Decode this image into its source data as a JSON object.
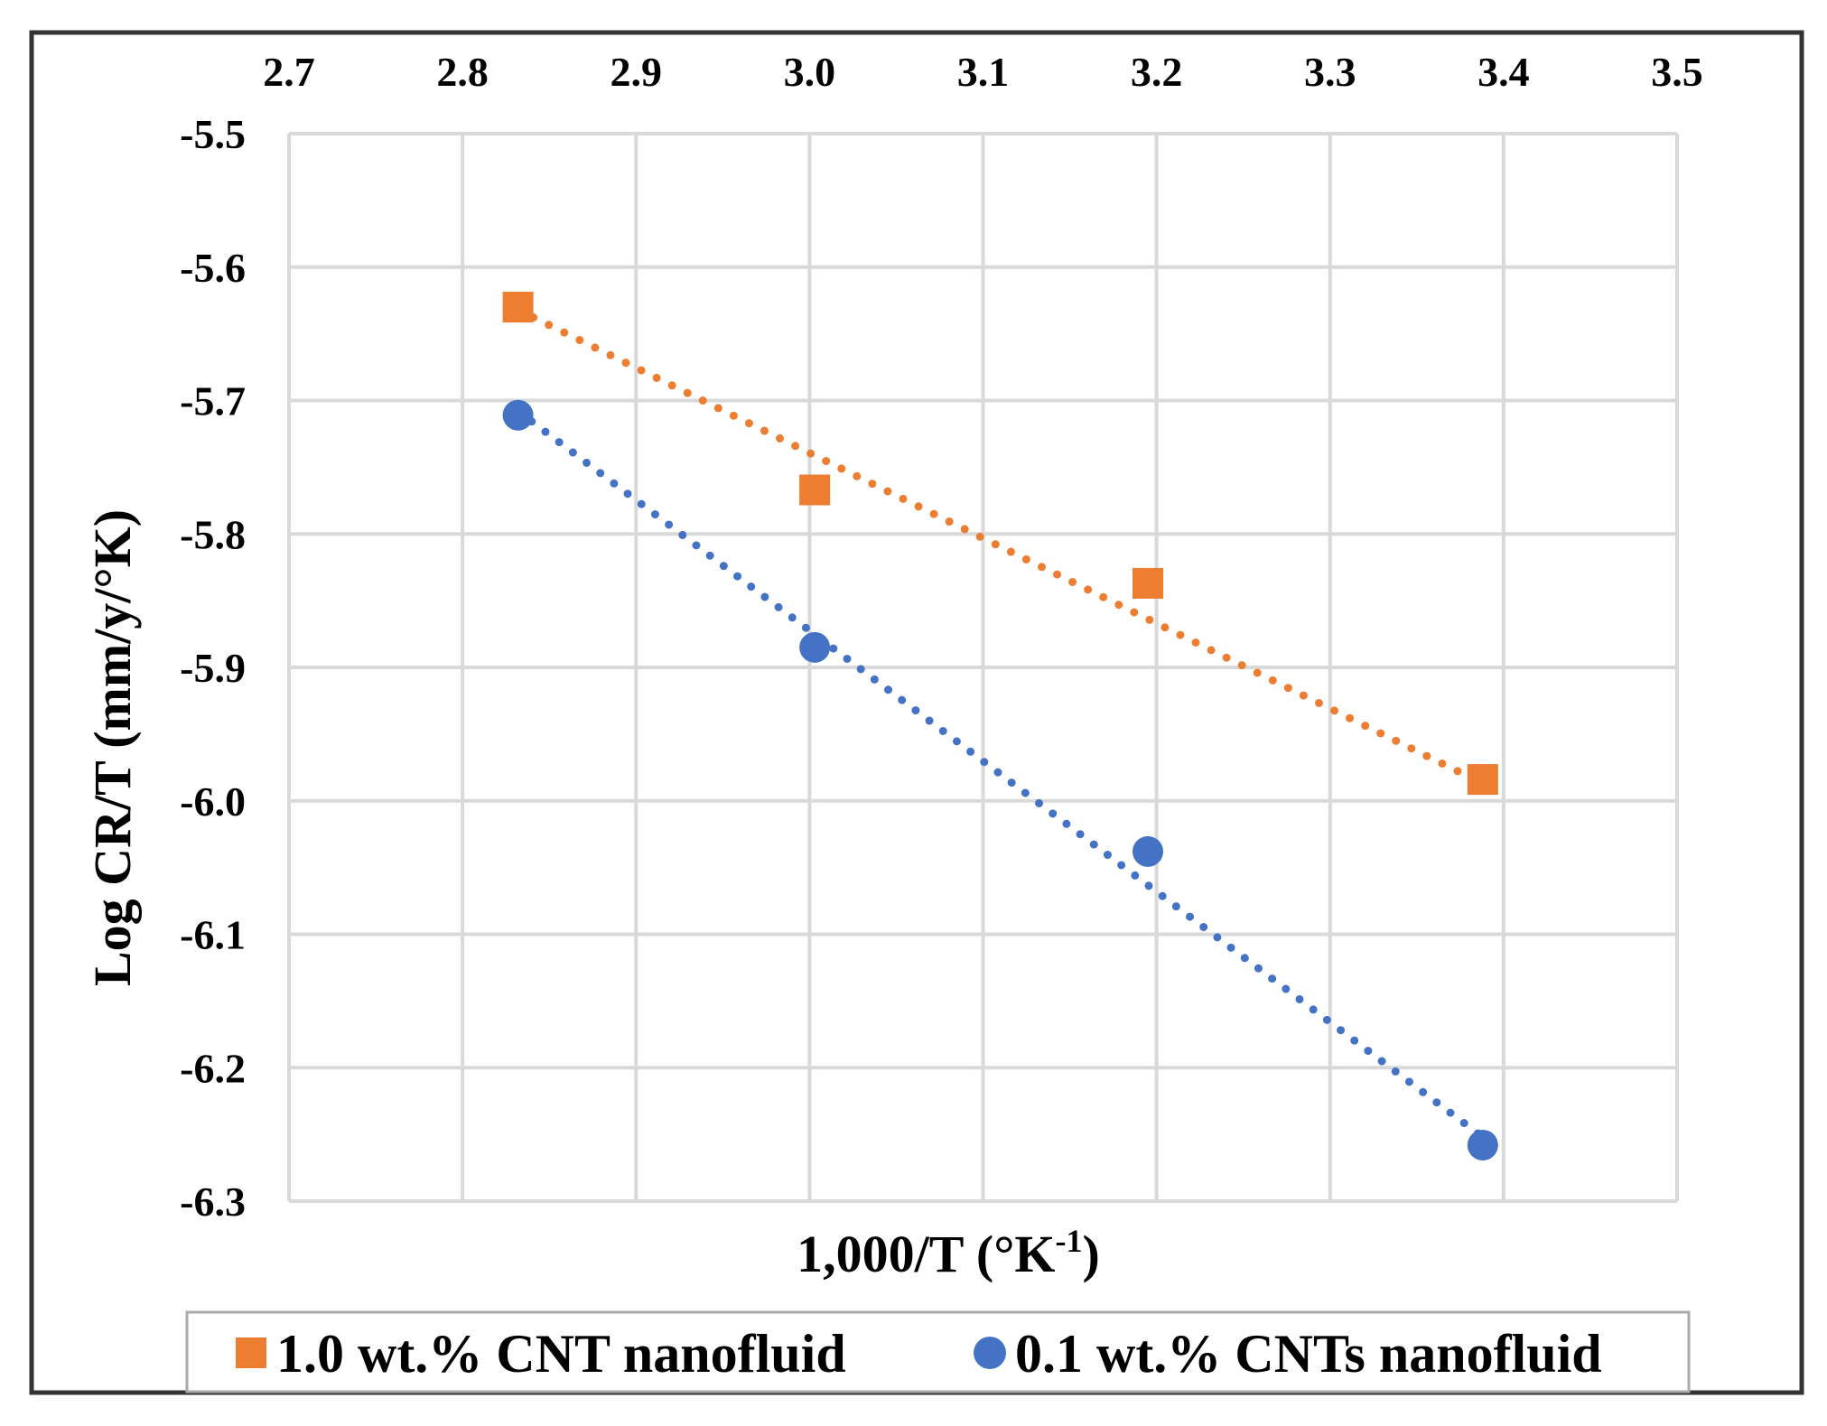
{
  "chart_data": {
    "type": "scatter",
    "title": "",
    "xlabel": "1,000/T (°K",
    "xlabel_sup": "-1",
    "xlabel_end": ")",
    "ylabel": "Log CR/T (mm/y/°K)",
    "xlim": [
      2.7,
      3.5
    ],
    "ylim": [
      -6.3,
      -5.5
    ],
    "x_ticks": [
      "2.7",
      "2.8",
      "2.9",
      "3.0",
      "3.1",
      "3.2",
      "3.3",
      "3.4",
      "3.5"
    ],
    "y_ticks": [
      "-5.5",
      "-5.6",
      "-5.7",
      "-5.8",
      "-5.9",
      "-6.0",
      "-6.1",
      "-6.2",
      "-6.3"
    ],
    "x_axis_position": "top",
    "grid": true,
    "legend_position": "bottom",
    "series": [
      {
        "name": "1.0 wt.% CNT nanofluid",
        "marker": "square",
        "color": "#ed7d31",
        "x": [
          2.832,
          3.003,
          3.195,
          3.388
        ],
        "y": [
          -5.63,
          -5.767,
          -5.837,
          -5.984
        ],
        "trendline": {
          "type": "linear",
          "style": "dotted",
          "x": [
            2.832,
            3.388
          ],
          "y": [
            -5.632,
            -5.987
          ]
        }
      },
      {
        "name": "0.1 wt.% CNTs nanofluid",
        "marker": "circle",
        "color": "#4472c4",
        "x": [
          2.832,
          3.003,
          3.195,
          3.388
        ],
        "y": [
          -5.711,
          -5.885,
          -6.038,
          -6.258
        ],
        "trendline": {
          "type": "linear",
          "style": "dotted",
          "x": [
            2.832,
            3.388
          ],
          "y": [
            -5.708,
            -6.252
          ]
        }
      }
    ]
  }
}
